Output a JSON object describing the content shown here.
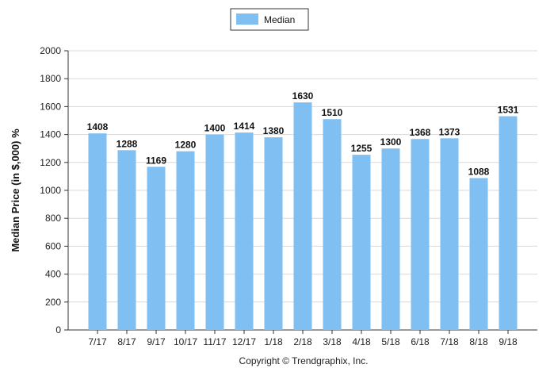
{
  "chart_data": {
    "type": "bar",
    "categories": [
      "7/17",
      "8/17",
      "9/17",
      "10/17",
      "11/17",
      "12/17",
      "1/18",
      "2/18",
      "3/18",
      "4/18",
      "5/18",
      "6/18",
      "7/18",
      "8/18",
      "9/18"
    ],
    "series": [
      {
        "name": "Median",
        "values": [
          1408,
          1288,
          1169,
          1280,
          1400,
          1414,
          1380,
          1630,
          1510,
          1255,
          1300,
          1368,
          1373,
          1088,
          1531
        ]
      }
    ],
    "ylabel": "Median Price (in $,000) %",
    "xlabel": "",
    "ylim": [
      0,
      2000
    ],
    "yticks": [
      0,
      200,
      400,
      600,
      800,
      1000,
      1200,
      1400,
      1600,
      1800,
      2000
    ],
    "grid": true,
    "legend_position": "top-center",
    "bar_color": "#7fbff2",
    "footer": "Copyright © Trendgraphix, Inc."
  }
}
